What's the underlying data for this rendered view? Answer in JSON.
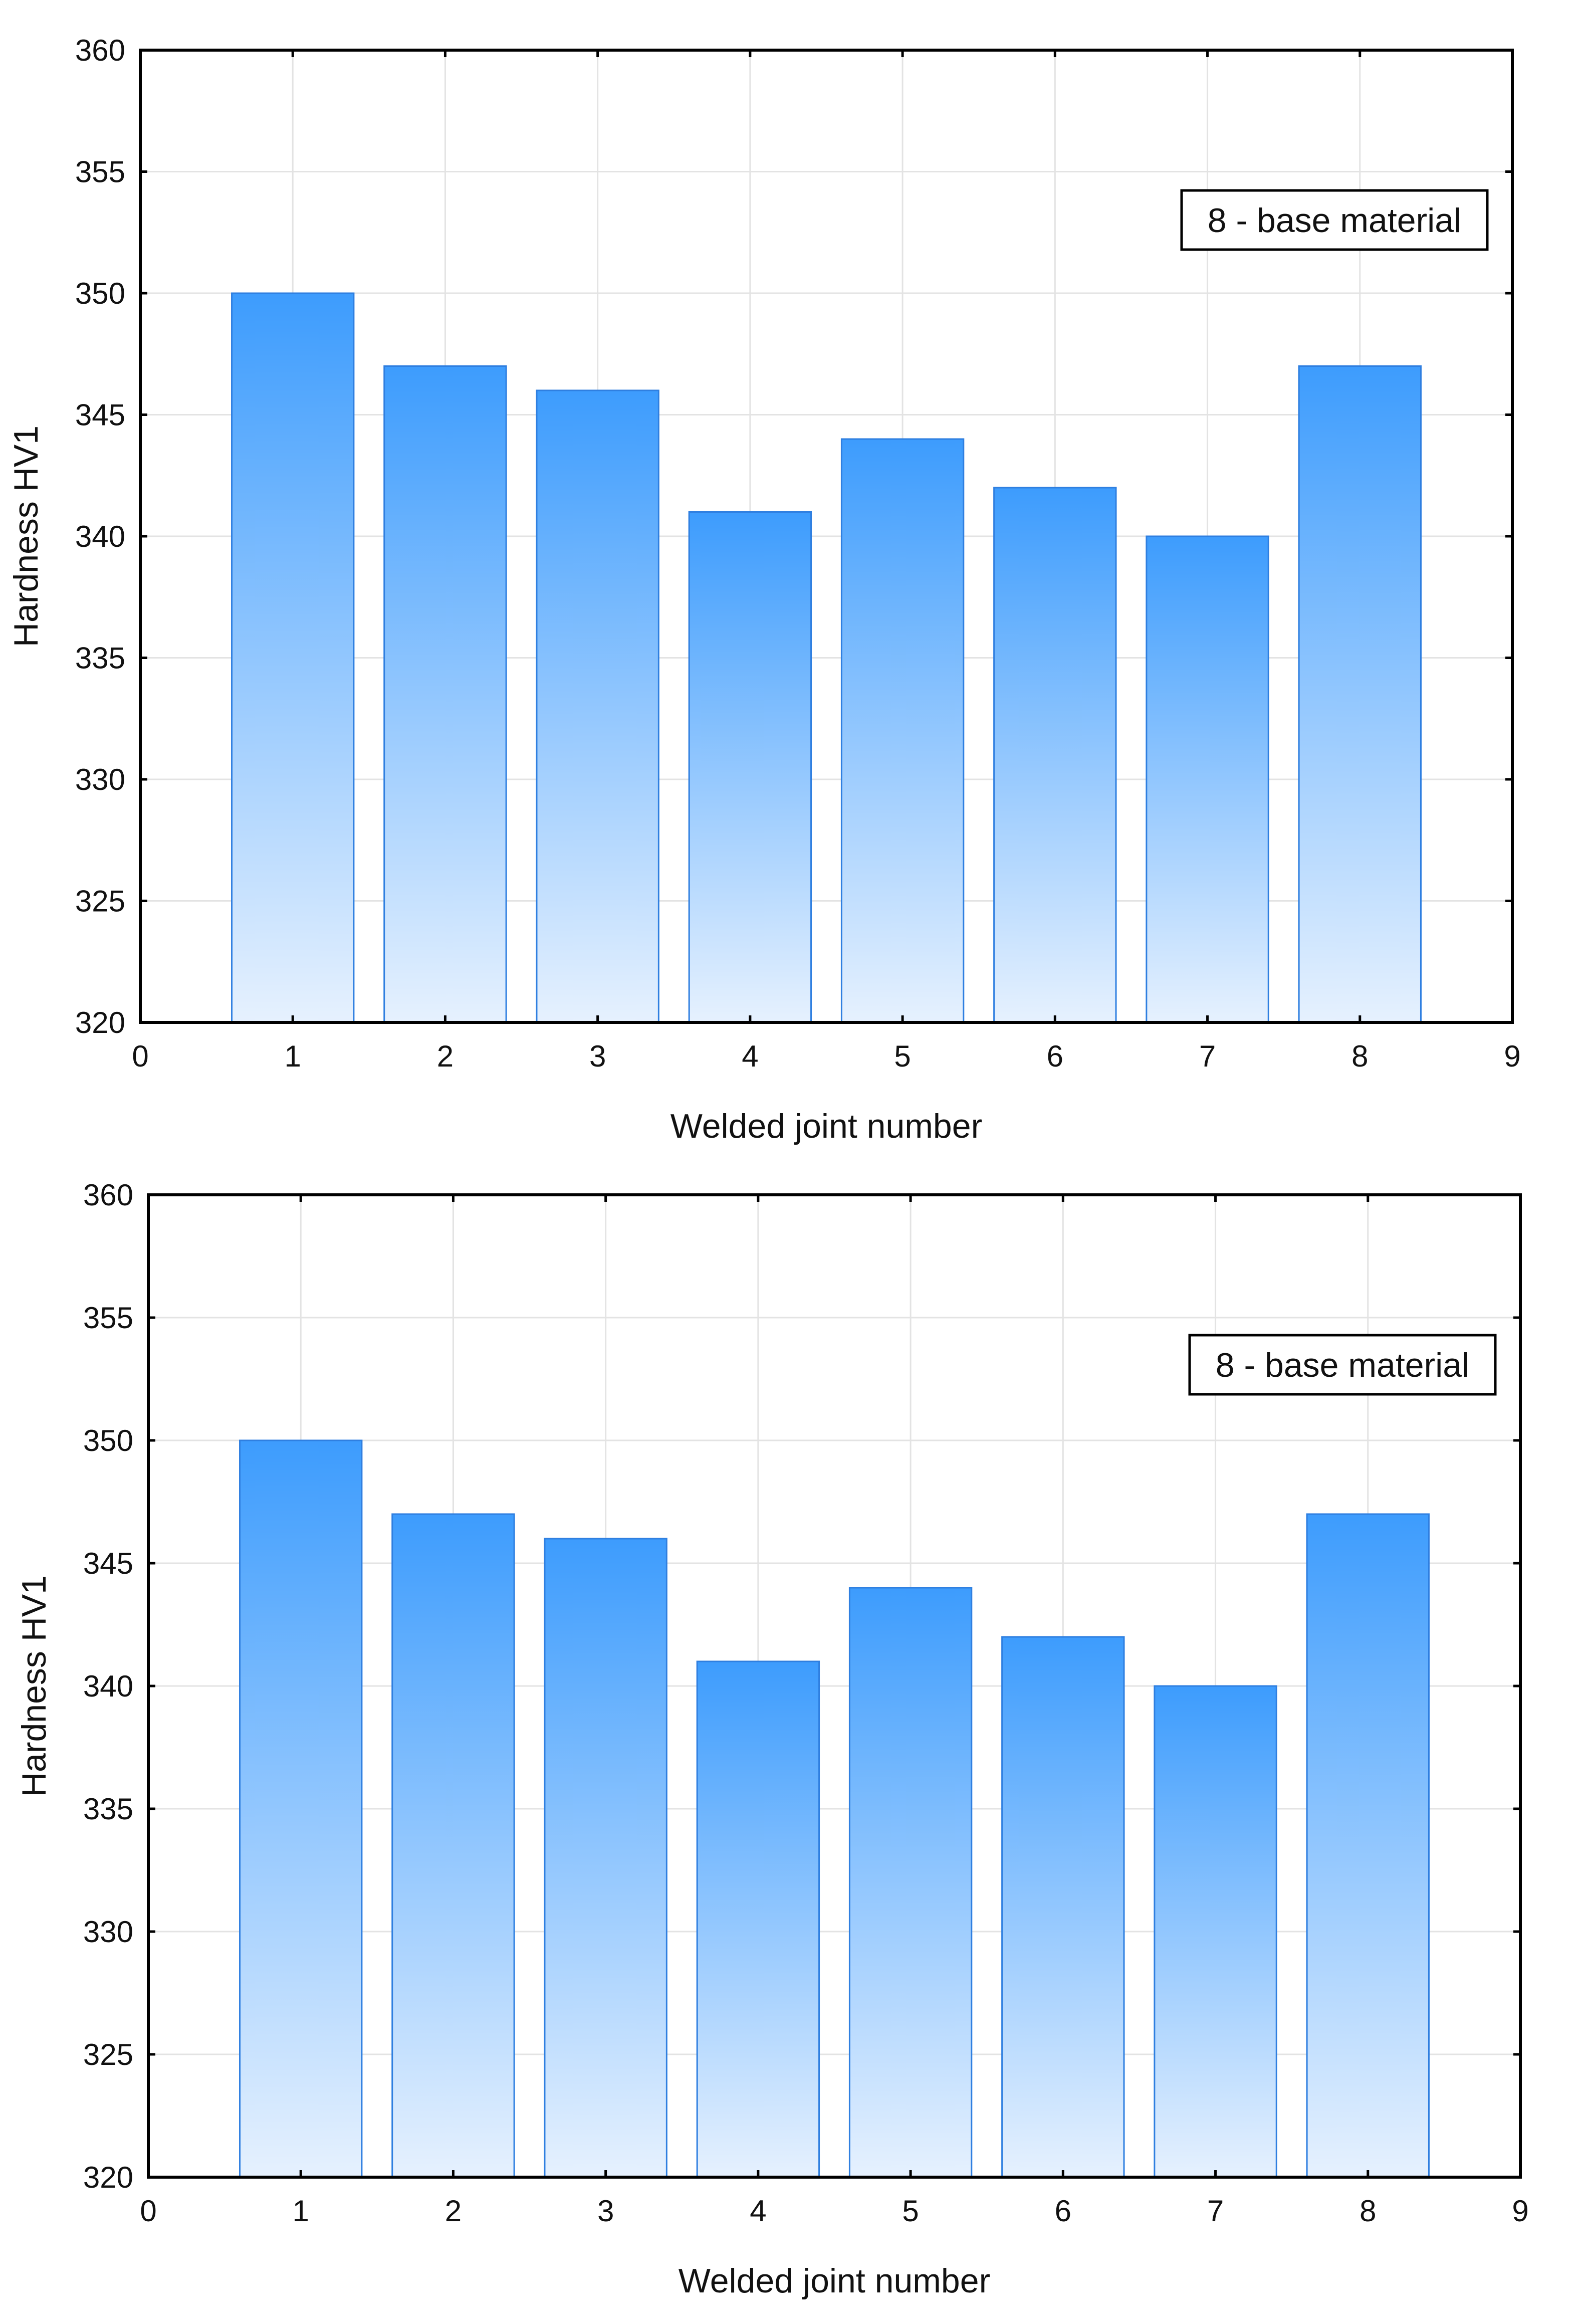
{
  "chart_data": [
    {
      "type": "bar",
      "title": "",
      "xlabel": "Welded joint number",
      "ylabel": "Hardness HV1",
      "x": [
        1,
        2,
        3,
        4,
        5,
        6,
        7,
        8
      ],
      "values": [
        350,
        347,
        346,
        341,
        344,
        342,
        340,
        347
      ],
      "xlim": [
        0,
        9
      ],
      "ylim": [
        320,
        360
      ],
      "xticks": [
        0,
        1,
        2,
        3,
        4,
        5,
        6,
        7,
        8,
        9
      ],
      "yticks": [
        320,
        325,
        330,
        335,
        340,
        345,
        350,
        355,
        360
      ],
      "grid": true,
      "annotation": "8 - base material",
      "annotation_position": "top-right",
      "colors": {
        "bar_top": "#3d9cfd",
        "bar_bottom": "#e6f1fe",
        "bar_edge": "#2f7fe0"
      }
    },
    {
      "type": "bar",
      "title": "",
      "xlabel": "Welded joint number",
      "ylabel": "Hardness HV1",
      "x": [
        1,
        2,
        3,
        4,
        5,
        6,
        7,
        8
      ],
      "values": [
        350,
        347,
        346,
        341,
        344,
        342,
        340,
        347
      ],
      "xlim": [
        0,
        9
      ],
      "ylim": [
        320,
        360
      ],
      "xticks": [
        0,
        1,
        2,
        3,
        4,
        5,
        6,
        7,
        8,
        9
      ],
      "yticks": [
        320,
        325,
        330,
        335,
        340,
        345,
        350,
        355,
        360
      ],
      "grid": true,
      "annotation": "8 - base material",
      "annotation_position": "top-right",
      "colors": {
        "bar_top": "#3d9cfd",
        "bar_bottom": "#e6f1fe",
        "bar_edge": "#2f7fe0"
      }
    }
  ]
}
